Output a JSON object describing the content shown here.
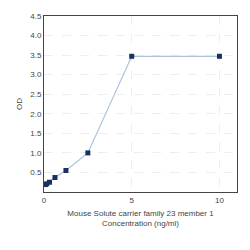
{
  "chart_data": {
    "type": "line",
    "xlabel": "Mouse Solute carrier family 23 member 1\nConcentration (ng/ml)",
    "ylabel": "OD",
    "x": [
      0.078,
      0.156,
      0.313,
      0.625,
      1.25,
      2.5,
      5.0,
      10.0
    ],
    "series": [
      {
        "values": [
          0.19,
          0.21,
          0.25,
          0.37,
          0.55,
          1.0,
          3.47,
          3.47
        ],
        "color": "#a8c4dc",
        "colors": [
          "#1a3060",
          "#1a3060",
          "#1a3060",
          "#1a3060",
          "#1a3060",
          "#1a3060",
          "#1a3060",
          "#1a3060"
        ],
        "marker": "square"
      }
    ],
    "xlim": [
      0,
      11
    ],
    "xticks": [
      0,
      5,
      10
    ],
    "ylim": [
      0,
      4.5
    ],
    "yticks": [
      0.5,
      {
        "value": 1.0,
        "label": "1.0"
      },
      1.5,
      {
        "value": 2.0,
        "label": "2.0"
      },
      2.5,
      {
        "value": 3.0,
        "label": "3.0"
      },
      3.5,
      {
        "value": 4.0,
        "label": "4.0"
      },
      4.5
    ],
    "grid": true
  }
}
